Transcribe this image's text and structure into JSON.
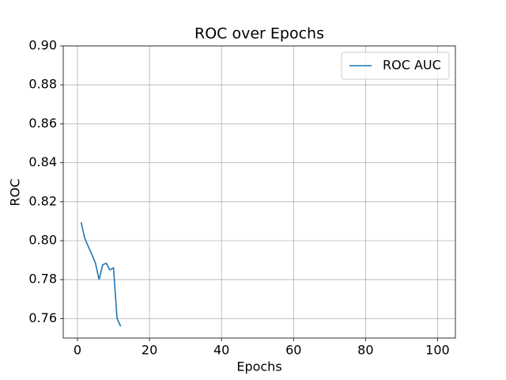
{
  "chart_data": {
    "type": "line",
    "title": "ROC over Epochs",
    "x_label": "Epochs",
    "y_label": "ROC",
    "x": [
      1,
      2,
      3,
      4,
      5,
      6,
      7,
      8,
      9,
      10,
      11,
      12
    ],
    "series": [
      {
        "name": "ROC AUC",
        "color": "#1f77b4",
        "values": [
          0.8095,
          0.8014,
          0.797,
          0.7929,
          0.7884,
          0.78,
          0.7876,
          0.7884,
          0.785,
          0.786,
          0.76,
          0.756
        ]
      }
    ],
    "xlim": [
      -3.95,
      104.95
    ],
    "xticks": [
      0,
      20,
      40,
      60,
      80,
      100
    ],
    "ylim": [
      0.75,
      0.9
    ],
    "yticks": [
      0.76,
      0.78,
      {
        "value": 0.8,
        "label": "0.80"
      },
      0.82,
      0.84,
      0.86,
      0.88,
      {
        "value": 0.9,
        "label": "0.90"
      }
    ],
    "grid": true,
    "legend": "upper right"
  }
}
